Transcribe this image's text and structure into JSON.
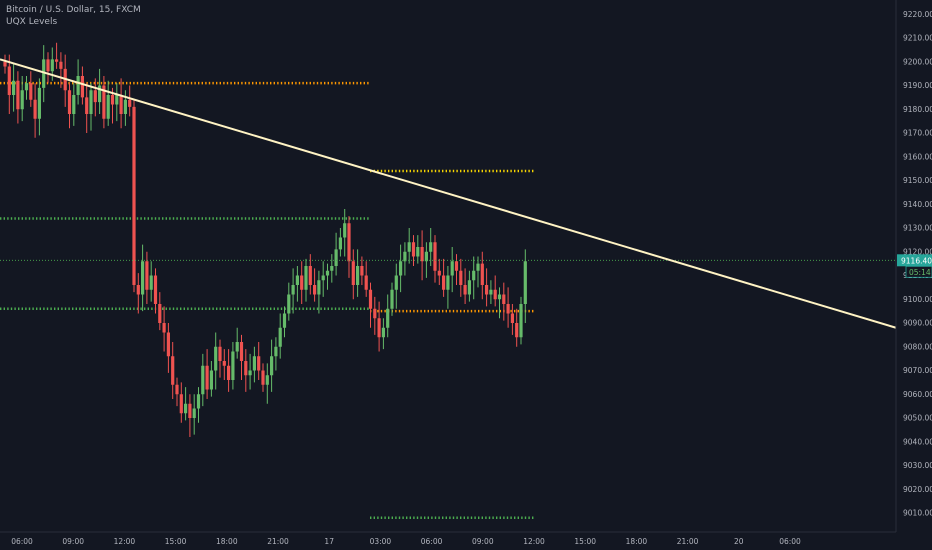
{
  "header": {
    "symbol_line": "Bitcoin / U.S. Dollar, 15, FXCM",
    "indicator": "UQX Levels"
  },
  "colors": {
    "background": "#131722",
    "up": "#26a69a",
    "up_candle": "#66bb6a",
    "down": "#ef5350",
    "trendline": "#fff3c4",
    "level_orange": "#ff9800",
    "level_yellow": "#f5d400",
    "level_green": "#4caf50",
    "price_line": "#4caf50"
  },
  "chart_data": {
    "type": "candlestick",
    "title": "Bitcoin / U.S. Dollar, 15, FXCM",
    "timeframe": "15",
    "ylim": [
      9002,
      9226
    ],
    "y_ticks": [
      9220,
      9210,
      9200,
      9190,
      9180,
      9170,
      9160,
      9150,
      9140,
      9130,
      9120,
      9110,
      9100,
      9090,
      9080,
      9070,
      9060,
      9050,
      9040,
      9030,
      9020,
      9010
    ],
    "x_ticks": [
      "06:00",
      "09:00",
      "12:00",
      "15:00",
      "18:00",
      "21:00",
      "17",
      "03:00",
      "06:00",
      "09:00",
      "12:00",
      "15:00",
      "18:00",
      "21:00",
      "20",
      "06:00"
    ],
    "last_price": "9116.40",
    "countdown": "05:14",
    "closes": [
      9198,
      9186,
      9192,
      9180,
      9188,
      9191,
      9184,
      9176,
      9189,
      9201,
      9196,
      9201,
      9200,
      9197,
      9188,
      9178,
      9186,
      9194,
      9185,
      9178,
      9188,
      9183,
      9190,
      9176,
      9186,
      9182,
      9186,
      9178,
      9184,
      9181,
      9106,
      9102,
      9116,
      9104,
      9110,
      9098,
      9090,
      9086,
      9076,
      9064,
      9060,
      9052,
      9056,
      9050,
      9054,
      9060,
      9072,
      9062,
      9070,
      9080,
      9074,
      9072,
      9066,
      9078,
      9082,
      9074,
      9068,
      9070,
      9076,
      9070,
      9064,
      9068,
      9076,
      9080,
      9088,
      9094,
      9102,
      9106,
      9110,
      9104,
      9114,
      9106,
      9102,
      9108,
      9110,
      9112,
      9114,
      9121,
      9126,
      9132,
      9116,
      9106,
      9114,
      9110,
      9104,
      9096,
      9092,
      9084,
      9088,
      9096,
      9104,
      9110,
      9116,
      9120,
      9124,
      9118,
      9122,
      9116,
      9120,
      9124,
      9112,
      9110,
      9104,
      9110,
      9116,
      9112,
      9106,
      9102,
      9108,
      9112,
      9115,
      9106,
      9102,
      9104,
      9100,
      9102,
      9098,
      9094,
      9090,
      9084,
      9098,
      9116
    ],
    "levels": [
      {
        "price": 9191,
        "color": "orange"
      },
      {
        "price": 9134,
        "color": "green"
      },
      {
        "price": 9096,
        "color": "green"
      },
      {
        "price": 9154,
        "color": "yellow"
      },
      {
        "price": 9095,
        "color": "orange"
      },
      {
        "price": 9008,
        "color": "green"
      }
    ],
    "trendline": {
      "start_price": 9201,
      "end_price": 9088
    }
  }
}
